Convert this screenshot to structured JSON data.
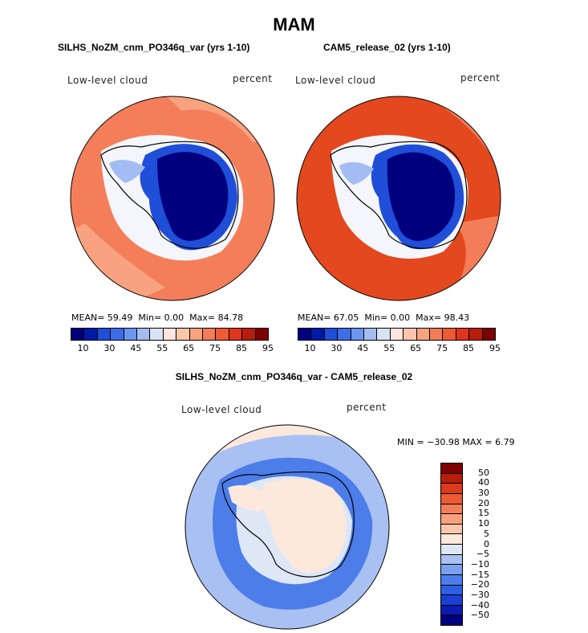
{
  "figure": {
    "title": "MAM"
  },
  "panels": {
    "left": {
      "title": "SILHS_NoZM_cnm_PO346q_var (yrs 1-10)",
      "variable": "Low-level cloud",
      "units": "percent",
      "stats": {
        "mean_label": "MEAN=",
        "mean": "59.49",
        "min_label": "Min=",
        "min": "0.00",
        "max_label": "Max=",
        "max": "84.78"
      }
    },
    "right": {
      "title": "CAM5_release_02 (yrs 1-10)",
      "variable": "Low-level cloud",
      "units": "percent",
      "stats": {
        "mean_label": "MEAN=",
        "mean": "67.05",
        "min_label": "Min=",
        "min": "0.00",
        "max_label": "Max=",
        "max": "98.43"
      }
    },
    "diff": {
      "title": "SILHS_NoZM_cnm_PO346q_var - CAM5_release_02",
      "variable": "Low-level cloud",
      "units": "percent",
      "minmax": "MIN = −30.98 MAX =   6.79"
    }
  },
  "colorbar_horizontal": {
    "colors": [
      "#00007f",
      "#0019a6",
      "#1f4ed8",
      "#3d6ee8",
      "#6c96f0",
      "#a3bcf2",
      "#d8e3f6",
      "#fde6dd",
      "#fbc6aa",
      "#f9a27f",
      "#f47d59",
      "#ee5a34",
      "#e1351b",
      "#b81c0b",
      "#7f0000"
    ],
    "tick_labels": [
      "10",
      "30",
      "45",
      "55",
      "65",
      "75",
      "85",
      "95"
    ]
  },
  "colorbar_vertical": {
    "colors": [
      "#00007f",
      "#0a1cb0",
      "#1a3fd6",
      "#2e5ee3",
      "#4c7de9",
      "#7aa0ee",
      "#a9c0f2",
      "#dde7f6",
      "#fde8dc",
      "#fbc6aa",
      "#f8a07d",
      "#f47e5a",
      "#ed5a33",
      "#dc3a1c",
      "#b61d0a",
      "#7f0000"
    ],
    "tick_labels": [
      "50",
      "40",
      "30",
      "20",
      "15",
      "10",
      "5",
      "0",
      "−5",
      "−10",
      "−15",
      "−20",
      "−30",
      "−40",
      "−50"
    ]
  },
  "map_colors": {
    "left_ocean": "#f47e5a",
    "left_ocean_light": "#f9a27f",
    "right_ocean": "#e3481f",
    "right_ocean_light": "#f47d59",
    "ice_dark": "#00007f",
    "ice_mid": "#1f4ed8",
    "ice_light": "#a3bcf2",
    "white": "#f4f6fb",
    "diff_ocean": "#a9c0f2",
    "diff_ring": "#4c7de9",
    "diff_land": "#fde8dc",
    "diff_pale": "#dde7f6"
  }
}
